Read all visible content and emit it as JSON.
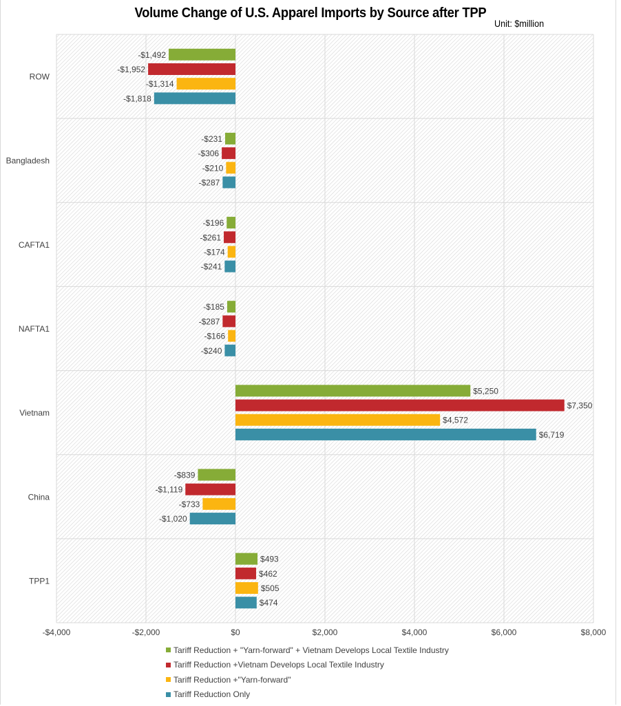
{
  "chart_data": {
    "type": "bar",
    "orientation": "horizontal",
    "title": "Volume Change of U.S. Apparel Imports by Source after TPP",
    "subtitle": "Unit: $million",
    "xlabel": "",
    "ylabel": "",
    "xlim": [
      -4000,
      8000
    ],
    "x_ticks": [
      -4000,
      -2000,
      0,
      2000,
      4000,
      6000,
      8000
    ],
    "x_tick_labels": [
      "-$4,000",
      "-$2,000",
      "$0",
      "$2,000",
      "$4,000",
      "$6,000",
      "$8,000"
    ],
    "grid": true,
    "legend_position": "bottom",
    "categories": [
      "ROW",
      "Bangladesh",
      "CAFTA1",
      "NAFTA1",
      "Vietnam",
      "China",
      "TPP1"
    ],
    "series": [
      {
        "name": "Tariff Reduction + \"Yarn-forward\" + Vietnam Develops Local Textile Industry",
        "color": "#86ac37",
        "values": [
          -1492,
          -231,
          -196,
          -185,
          5250,
          -839,
          493
        ],
        "labels": [
          "-$1,492",
          "-$231",
          "-$196",
          "-$185",
          "$5,250",
          "-$839",
          "$493"
        ]
      },
      {
        "name": "Tariff Reduction +Vietnam Develops Local Textile Industry",
        "color": "#c1292e",
        "values": [
          -1952,
          -306,
          -261,
          -287,
          7350,
          -1119,
          462
        ],
        "labels": [
          "-$1,952",
          "-$306",
          "-$261",
          "-$287",
          "$7,350",
          "-$1,119",
          "$462"
        ]
      },
      {
        "name": "Tariff Reduction +\"Yarn-forward\"",
        "color": "#fbb511",
        "values": [
          -1314,
          -210,
          -174,
          -166,
          4572,
          -733,
          505
        ],
        "labels": [
          "-$1,314",
          "-$210",
          "-$174",
          "-$166",
          "$4,572",
          "-$733",
          "$505"
        ]
      },
      {
        "name": "Tariff Reduction Only",
        "color": "#3a8fa6",
        "values": [
          -1818,
          -287,
          -241,
          -240,
          6719,
          -1020,
          474
        ],
        "labels": [
          "-$1,818",
          "-$287",
          "-$241",
          "-$240",
          "$6,719",
          "-$1,020",
          "$474"
        ]
      }
    ]
  }
}
